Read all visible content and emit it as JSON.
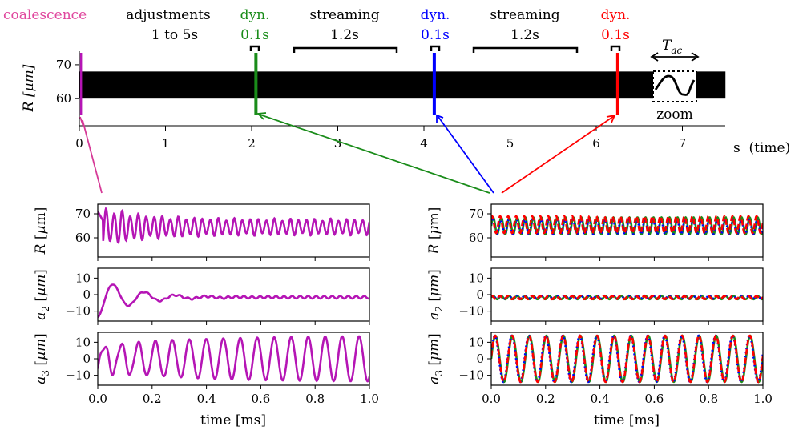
{
  "timeline": {
    "top_labels": [
      {
        "text": "coalescence",
        "color": "#e0479e"
      },
      {
        "text": "adjustments",
        "sub": "1 to 5s",
        "color": "#000000"
      },
      {
        "text": "dyn.",
        "sub": "0.1s",
        "color": "#1a8c1a"
      },
      {
        "text": "streaming",
        "sub": "1.2s",
        "color": "#000000"
      },
      {
        "text": "dyn.",
        "sub": "0.1s",
        "color": "#0000ff"
      },
      {
        "text": "streaming",
        "sub": "1.2s",
        "color": "#000000"
      },
      {
        "text": "dyn.",
        "sub": "0.1s",
        "color": "#ff0000"
      }
    ],
    "ylabel": "R [μm]",
    "xunit": "s  (time)",
    "tac_label": "T",
    "tac_sub": "ac",
    "zoom_label": "zoom",
    "xticks": [
      "0",
      "1",
      "2",
      "3",
      "4",
      "5",
      "6",
      "7"
    ],
    "yticks": [
      "60",
      "70"
    ],
    "band": {
      "x_start": 0,
      "x_end": 7.5,
      "y_min": 60,
      "y_max": 68
    },
    "markers": [
      {
        "t": 0.02,
        "color": "#b515b5"
      },
      {
        "t": 2.05,
        "color": "#1a8c1a"
      },
      {
        "t": 4.12,
        "color": "#0000ff"
      },
      {
        "t": 6.25,
        "color": "#ff0000"
      }
    ],
    "colors": {
      "coalescence": "#e0479e",
      "green": "#1a8c1a",
      "blue": "#0000ff",
      "red": "#ff0000",
      "magenta": "#b515b5"
    }
  },
  "left_panels": {
    "xlabel": "time [ms]",
    "xticks": [
      "0.0",
      "0.2",
      "0.4",
      "0.6",
      "0.8",
      "1.0"
    ],
    "ylabels": [
      "R [μm]",
      "a2 [μm]",
      "a3 [μm]"
    ]
  },
  "right_panels": {
    "xlabel": "time [ms]",
    "xticks": [
      "0.0",
      "0.2",
      "0.4",
      "0.6",
      "0.8",
      "1.0"
    ],
    "ylabels": [
      "R [μm]",
      "a2 [μm]",
      "a3 [μm]"
    ]
  },
  "chart_data": [
    {
      "type": "line",
      "panel": "left-R",
      "ylabel": "R [μm]",
      "xlim": [
        0,
        1.0
      ],
      "ylim": [
        52,
        74
      ],
      "yticks": [
        60,
        70
      ],
      "series": [
        {
          "color": "#b515b5",
          "x": [
            0.0,
            0.01,
            0.02,
            0.03,
            0.04,
            0.05,
            0.06,
            0.07,
            0.08,
            0.09,
            0.1,
            0.11,
            0.12,
            0.13,
            0.14,
            0.15,
            0.16,
            0.17,
            0.18,
            0.2,
            0.25,
            0.3,
            0.4,
            0.5,
            0.6,
            0.7,
            0.8,
            0.9,
            1.0
          ],
          "y": [
            71,
            69,
            58,
            62,
            59,
            54,
            66,
            62,
            64,
            72,
            65,
            60,
            68,
            62,
            67,
            57,
            65,
            63,
            68,
            64,
            67,
            65,
            66,
            65,
            66,
            65,
            66,
            65,
            63
          ]
        }
      ],
      "osc": {
        "mean": 64.5,
        "amp_end": 3.5,
        "period": 0.0295,
        "decay": 0.15
      }
    },
    {
      "type": "line",
      "panel": "left-a2",
      "ylabel": "a2 [μm]",
      "xlim": [
        0,
        1.0
      ],
      "ylim": [
        -16,
        16
      ],
      "yticks": [
        -10,
        0,
        10
      ],
      "series": [
        {
          "color": "#b515b5",
          "x": [
            0.0,
            0.05,
            0.1,
            0.15,
            0.2,
            0.25,
            0.3,
            0.35,
            0.4,
            1.0
          ],
          "y": [
            -10,
            11,
            -9,
            6,
            -5,
            1,
            -3,
            -1,
            -2,
            -2
          ]
        }
      ],
      "osc": {
        "mean": -1.6,
        "amp0": 12,
        "period": 0.115,
        "decay": 0.13
      }
    },
    {
      "type": "line",
      "panel": "left-a3",
      "ylabel": "a3 [μm]",
      "xlim": [
        0,
        1.0
      ],
      "ylim": [
        -16,
        16
      ],
      "yticks": [
        -10,
        0,
        10
      ],
      "series": [
        {
          "color": "#b515b5",
          "x": [
            0.0,
            0.05,
            0.1,
            0.2,
            0.3,
            0.4,
            0.6,
            0.8,
            1.0
          ],
          "y": [
            -10,
            8,
            -9,
            11,
            -12,
            14,
            14,
            14,
            14
          ]
        }
      ],
      "osc": {
        "mean": 0,
        "amp_end": 14,
        "period": 0.0625,
        "growth": 0.35
      }
    },
    {
      "type": "line",
      "panel": "right-R",
      "ylabel": "R [μm]",
      "xlim": [
        0,
        1.0
      ],
      "ylim": [
        52,
        74
      ],
      "yticks": [
        60,
        70
      ],
      "series": [
        {
          "color": "#1a8c1a",
          "style": "solid",
          "mean": 65,
          "amp": 3.5,
          "period": 0.0295,
          "phase": 0.0
        },
        {
          "color": "#0000ff",
          "style": "dotted",
          "mean": 64.5,
          "amp": 3.0,
          "period": 0.0295,
          "phase": 0.4
        },
        {
          "color": "#ff0000",
          "style": "dashed",
          "mean": 65.5,
          "amp": 3.5,
          "period": 0.0295,
          "phase": 0.9
        }
      ]
    },
    {
      "type": "line",
      "panel": "right-a2",
      "ylabel": "a2 [μm]",
      "xlim": [
        0,
        1.0
      ],
      "ylim": [
        -16,
        16
      ],
      "yticks": [
        -10,
        0,
        10
      ],
      "series": [
        {
          "color": "#1a8c1a",
          "style": "solid",
          "mean": -1.8,
          "amp": 1.0,
          "period": 0.0295,
          "phase": 0.0
        },
        {
          "color": "#0000ff",
          "style": "dotted",
          "mean": -1.5,
          "amp": 0.9,
          "period": 0.0295,
          "phase": 0.5
        },
        {
          "color": "#ff0000",
          "style": "dashed",
          "mean": -1.8,
          "amp": 1.0,
          "period": 0.0295,
          "phase": 1.0
        }
      ]
    },
    {
      "type": "line",
      "panel": "right-a3",
      "ylabel": "a3 [μm]",
      "xlim": [
        0,
        1.0
      ],
      "ylim": [
        -16,
        16
      ],
      "yticks": [
        -10,
        0,
        10
      ],
      "series": [
        {
          "color": "#1a8c1a",
          "style": "solid",
          "mean": 0,
          "amp": 14,
          "period": 0.0625,
          "phase": 0.0
        },
        {
          "color": "#0000ff",
          "style": "dotted",
          "mean": 0,
          "amp": 14,
          "period": 0.0625,
          "phase": 0.25
        },
        {
          "color": "#ff0000",
          "style": "dashed",
          "mean": 0,
          "amp": 14,
          "period": 0.0625,
          "phase": 0.12
        }
      ]
    }
  ]
}
